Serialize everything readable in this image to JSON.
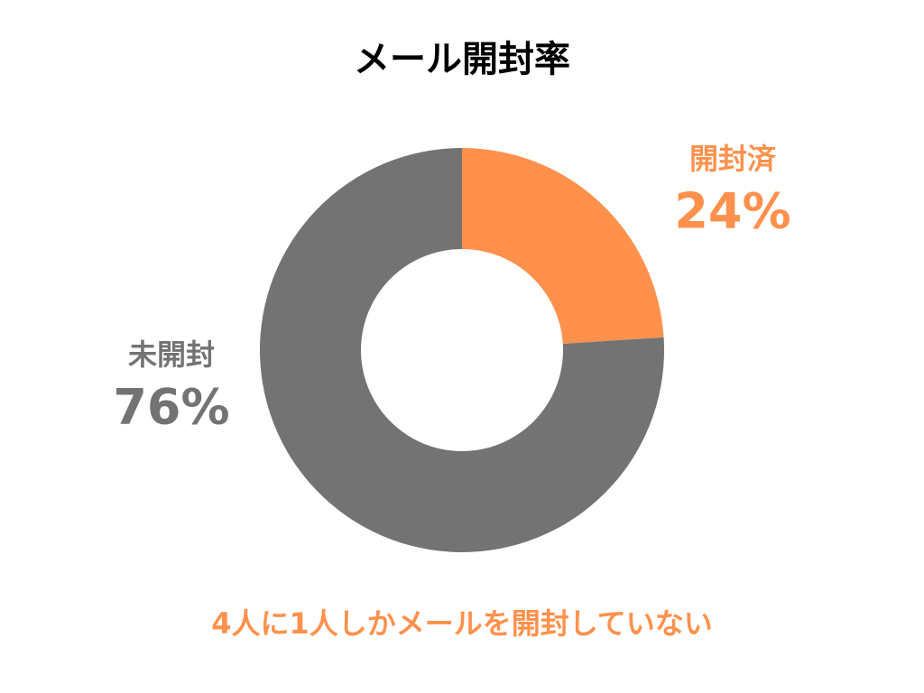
{
  "chart_data": {
    "type": "pie",
    "title": "メール開封率",
    "categories": [
      "開封済",
      "未開封"
    ],
    "values": [
      24,
      76
    ],
    "value_labels": [
      "24%",
      "76%"
    ],
    "colors": [
      "#ff914d",
      "#737373"
    ],
    "donut": true,
    "annotation": "4人に1人しかメールを開封していない"
  }
}
